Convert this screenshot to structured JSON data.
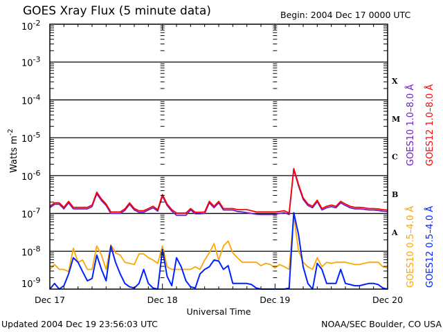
{
  "chart_data": {
    "type": "line",
    "title": "GOES Xray Flux (5 minute data)",
    "begin": "Begin:  2004 Dec 17 0000 UTC",
    "xlabel": "Universal Time",
    "ylabel": "Watts m",
    "ylabel_exp": "-2",
    "yscale": "log",
    "ylim_log10": [
      -9,
      -2
    ],
    "xlim_hours": [
      0,
      72
    ],
    "x_tick_labels": [
      "Dec 17",
      "Dec 18",
      "Dec 19",
      "Dec 20"
    ],
    "x_tick_hours": [
      0,
      24,
      48,
      72
    ],
    "y_tick_base": "10",
    "y_tick_exponents": [
      "-2",
      "-3",
      "-4",
      "-5",
      "-6",
      "-7",
      "-8",
      "-9"
    ],
    "flare_classes": [
      "X",
      "M",
      "C",
      "B",
      "A"
    ],
    "x_hours_step": 1,
    "series": [
      {
        "name": "GOES10 1.0–8.0 Å",
        "color": "#6a1fc8",
        "log10_values": [
          -6.85,
          -6.76,
          -6.76,
          -6.88,
          -6.72,
          -6.88,
          -6.88,
          -6.88,
          -6.88,
          -6.82,
          -6.48,
          -6.66,
          -6.79,
          -7.0,
          -7.0,
          -7.0,
          -6.92,
          -6.76,
          -6.91,
          -6.97,
          -6.97,
          -6.91,
          -6.85,
          -6.94,
          -6.54,
          -6.79,
          -6.94,
          -7.05,
          -7.05,
          -7.05,
          -6.91,
          -7.01,
          -7.01,
          -7.0,
          -6.72,
          -6.85,
          -6.72,
          -6.91,
          -6.91,
          -6.91,
          -6.95,
          -6.96,
          -6.98,
          -7.0,
          -7.02,
          -7.03,
          -7.03,
          -7.03,
          -7.02,
          -7.0,
          -6.98,
          -7.03,
          -5.84,
          -6.27,
          -6.63,
          -6.79,
          -6.85,
          -6.69,
          -6.91,
          -6.85,
          -6.82,
          -6.85,
          -6.72,
          -6.79,
          -6.85,
          -6.88,
          -6.88,
          -6.89,
          -6.91,
          -6.91,
          -6.92,
          -6.94,
          -6.95
        ]
      },
      {
        "name": "GOES12 1.0–8.0 Å",
        "color": "#ff0000",
        "log10_values": [
          -6.81,
          -6.72,
          -6.72,
          -6.84,
          -6.68,
          -6.84,
          -6.84,
          -6.84,
          -6.84,
          -6.78,
          -6.44,
          -6.62,
          -6.75,
          -6.96,
          -6.96,
          -6.96,
          -6.88,
          -6.72,
          -6.87,
          -6.93,
          -6.93,
          -6.87,
          -6.81,
          -6.9,
          -6.5,
          -6.75,
          -6.9,
          -6.99,
          -6.99,
          -6.99,
          -6.87,
          -6.97,
          -6.97,
          -6.96,
          -6.68,
          -6.81,
          -6.68,
          -6.87,
          -6.87,
          -6.87,
          -6.9,
          -6.9,
          -6.9,
          -6.93,
          -6.96,
          -6.96,
          -6.96,
          -6.96,
          -6.96,
          -6.95,
          -6.93,
          -6.99,
          -5.81,
          -6.23,
          -6.59,
          -6.75,
          -6.81,
          -6.65,
          -6.87,
          -6.81,
          -6.78,
          -6.81,
          -6.68,
          -6.75,
          -6.81,
          -6.84,
          -6.84,
          -6.85,
          -6.87,
          -6.87,
          -6.88,
          -6.9,
          -6.91
        ]
      },
      {
        "name": "GOES10 0.5–4.0 Å",
        "color": "#ffa500",
        "log10_values": [
          -8.48,
          -8.35,
          -8.48,
          -8.48,
          -8.54,
          -7.92,
          -8.29,
          -8.23,
          -8.48,
          -8.48,
          -7.86,
          -8.1,
          -8.48,
          -7.83,
          -8.04,
          -8.1,
          -8.29,
          -8.32,
          -8.35,
          -8.07,
          -8.07,
          -8.17,
          -8.23,
          -8.32,
          -7.86,
          -8.41,
          -8.48,
          -8.48,
          -8.48,
          -8.48,
          -8.48,
          -8.41,
          -8.48,
          -8.23,
          -8.04,
          -7.8,
          -8.23,
          -7.86,
          -7.73,
          -8.04,
          -8.17,
          -8.29,
          -8.29,
          -8.29,
          -8.29,
          -8.38,
          -8.32,
          -8.35,
          -8.44,
          -8.35,
          -8.41,
          -8.48,
          -7.06,
          -7.98,
          -8.29,
          -8.41,
          -8.48,
          -8.17,
          -8.41,
          -8.29,
          -8.32,
          -8.29,
          -8.29,
          -8.29,
          -8.32,
          -8.35,
          -8.35,
          -8.32,
          -8.29,
          -8.29,
          -8.29,
          -8.41,
          -8.44
        ]
      },
      {
        "name": "GOES12 0.5–4.0 Å",
        "color": "#0022ff",
        "log10_values": [
          -9.0,
          -8.85,
          -9.0,
          -8.91,
          -8.6,
          -8.17,
          -8.29,
          -8.54,
          -8.78,
          -8.72,
          -8.1,
          -8.48,
          -8.78,
          -7.86,
          -8.29,
          -8.6,
          -8.85,
          -8.94,
          -8.97,
          -8.85,
          -8.48,
          -8.85,
          -8.97,
          -9.0,
          -7.95,
          -8.66,
          -8.91,
          -8.17,
          -8.41,
          -8.78,
          -8.94,
          -8.97,
          -8.6,
          -8.48,
          -8.41,
          -8.23,
          -8.26,
          -8.48,
          -8.38,
          -8.85,
          -8.85,
          -8.85,
          -8.85,
          -8.88,
          -8.97,
          -9.0,
          -9.0,
          -9.0,
          -9.0,
          -9.0,
          -9.0,
          -8.97,
          -6.98,
          -7.55,
          -8.41,
          -8.85,
          -9.0,
          -8.32,
          -8.48,
          -8.85,
          -8.85,
          -8.85,
          -8.48,
          -8.85,
          -8.88,
          -8.91,
          -8.91,
          -8.88,
          -8.85,
          -8.85,
          -8.88,
          -8.97,
          -9.0
        ]
      }
    ]
  },
  "footer": {
    "updated": "Updated 2004 Dec 19 23:56:03 UTC",
    "source": "NOAA/SEC Boulder, CO USA"
  }
}
